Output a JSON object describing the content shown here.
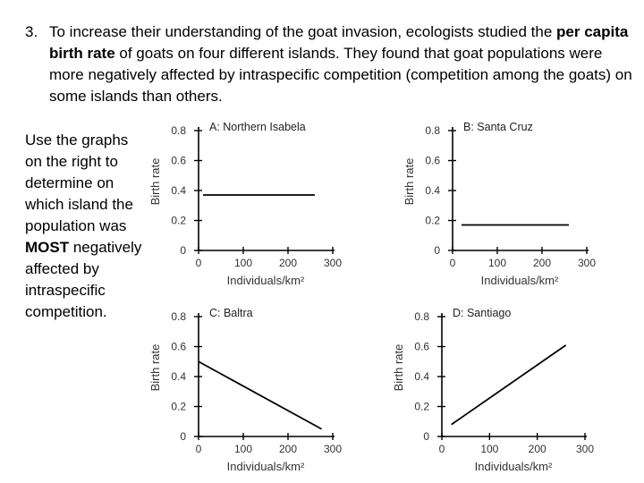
{
  "question": {
    "number": "3.",
    "text_1": "To increase their understanding of the goat invasion, ecologists studied the ",
    "bold_1": "per capita birth rate",
    "text_2": " of goats on four different islands. They found that goat populations were more negatively affected by intraspecific competition (competition among the goats) on some islands than others."
  },
  "instruction": {
    "text_1": "Use the graphs on the right to determine on which island the population was ",
    "bold": "MOST",
    "text_2": " negatively affected by intraspecific competition."
  },
  "chart_data": [
    {
      "type": "line",
      "title": "A: Northern Isabela",
      "xlabel": "Individuals/km²",
      "ylabel": "Birth rate",
      "xlim": [
        0,
        300
      ],
      "ylim": [
        0,
        0.8
      ],
      "xticks": [
        "0",
        "100",
        "200",
        "300"
      ],
      "yticks": [
        "0",
        "0.2",
        "0.4",
        "0.6",
        "0.8"
      ],
      "series": [
        {
          "x": [
            10,
            260
          ],
          "y": [
            0.37,
            0.37
          ]
        }
      ]
    },
    {
      "type": "line",
      "title": "B: Santa Cruz",
      "xlabel": "Individuals/km²",
      "ylabel": "Birth rate",
      "xlim": [
        0,
        300
      ],
      "ylim": [
        0,
        0.8
      ],
      "xticks": [
        "0",
        "100",
        "200",
        "300"
      ],
      "yticks": [
        "0",
        "0.2",
        "0.4",
        "0.6",
        "0.8"
      ],
      "series": [
        {
          "x": [
            20,
            260
          ],
          "y": [
            0.17,
            0.17
          ]
        }
      ]
    },
    {
      "type": "line",
      "title": "C: Baltra",
      "xlabel": "Individuals/km²",
      "ylabel": "Birth rate",
      "xlim": [
        0,
        300
      ],
      "ylim": [
        0,
        0.8
      ],
      "xticks": [
        "0",
        "100",
        "200",
        "300"
      ],
      "yticks": [
        "0",
        "0.2",
        "0.4",
        "0.6",
        "0.8"
      ],
      "series": [
        {
          "x": [
            0,
            275
          ],
          "y": [
            0.5,
            0.05
          ]
        }
      ]
    },
    {
      "type": "line",
      "title": "D: Santiago",
      "xlabel": "Individuals/km²",
      "ylabel": "Birth rate",
      "xlim": [
        0,
        300
      ],
      "ylim": [
        0,
        0.8
      ],
      "xticks": [
        "0",
        "100",
        "200",
        "300"
      ],
      "yticks": [
        "0",
        "0.2",
        "0.4",
        "0.6",
        "0.8"
      ],
      "series": [
        {
          "x": [
            20,
            260
          ],
          "y": [
            0.08,
            0.61
          ]
        }
      ]
    }
  ]
}
